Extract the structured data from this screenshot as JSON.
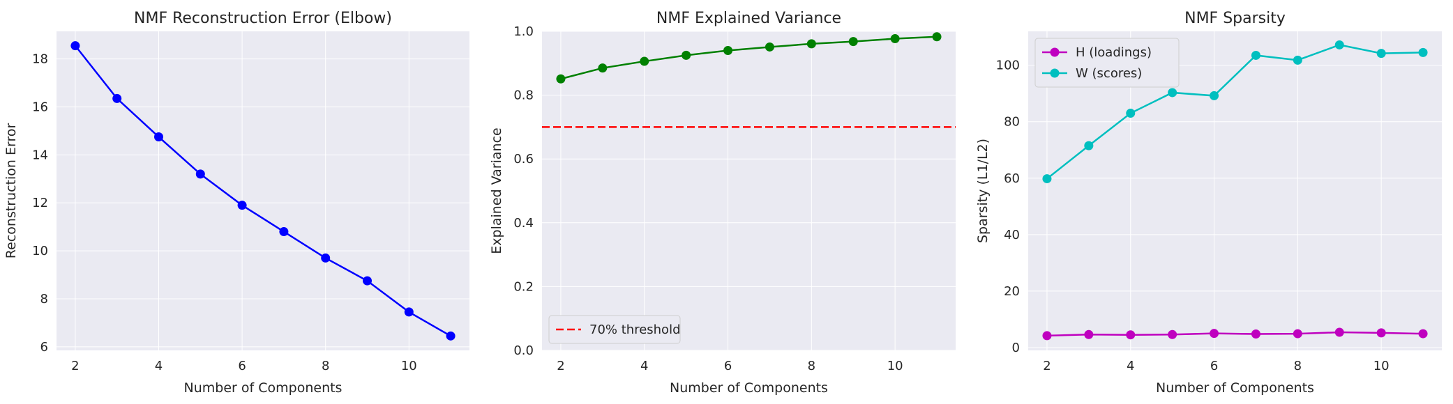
{
  "colors": {
    "panel_bg": "#eaeaf2",
    "grid": "#ffffff",
    "text": "#262626",
    "error_line": "#0000ff",
    "variance_line": "#008000",
    "threshold": "#ff0000",
    "h_line": "#bf00bf",
    "w_line": "#00bfbf"
  },
  "chart_data": [
    {
      "type": "line",
      "title": "NMF Reconstruction Error (Elbow)",
      "xlabel": "Number of Components",
      "ylabel": "Reconstruction Error",
      "x": [
        2,
        3,
        4,
        5,
        6,
        7,
        8,
        9,
        10,
        11
      ],
      "series": [
        {
          "values": [
            18.55,
            16.35,
            14.75,
            13.2,
            11.9,
            10.8,
            9.7,
            8.75,
            7.45,
            6.45
          ],
          "color": "#0000ff",
          "marker": "circle"
        }
      ],
      "xlim": [
        1.55,
        11.45
      ],
      "ylim": [
        5.85,
        19.15
      ],
      "xticks": [
        2,
        4,
        6,
        8,
        10
      ],
      "yticks": [
        6,
        8,
        10,
        12,
        14,
        16,
        18
      ],
      "grid": true
    },
    {
      "type": "line",
      "title": "NMF Explained Variance",
      "xlabel": "Number of Components",
      "ylabel": "Explained Variance",
      "x": [
        2,
        3,
        4,
        5,
        6,
        7,
        8,
        9,
        10,
        11
      ],
      "series": [
        {
          "values": [
            0.851,
            0.885,
            0.906,
            0.925,
            0.94,
            0.951,
            0.961,
            0.968,
            0.977,
            0.983
          ],
          "color": "#008000",
          "marker": "circle"
        }
      ],
      "hlines": [
        {
          "name": "70% threshold",
          "y": 0.7,
          "color": "#ff0000",
          "style": "dashed"
        }
      ],
      "xlim": [
        1.55,
        11.45
      ],
      "ylim": [
        0,
        1.0
      ],
      "xticks": [
        2,
        4,
        6,
        8,
        10
      ],
      "yticks": [
        "0.0",
        "0.2",
        "0.4",
        "0.6",
        "0.8",
        "1.0"
      ],
      "legend": {
        "placement": "lower-left",
        "entries": [
          "70% threshold"
        ]
      },
      "grid": true
    },
    {
      "type": "line",
      "title": "NMF Sparsity",
      "xlabel": "Number of Components",
      "ylabel": "Sparsity (L1/L2)",
      "x": [
        2,
        3,
        4,
        5,
        6,
        7,
        8,
        9,
        10,
        11
      ],
      "series": [
        {
          "name": "H (loadings)",
          "values": [
            4.2,
            4.6,
            4.5,
            4.6,
            5.0,
            4.8,
            4.9,
            5.4,
            5.2,
            4.9
          ],
          "color": "#bf00bf",
          "marker": "circle"
        },
        {
          "name": "W (scores)",
          "values": [
            59.8,
            71.5,
            83.0,
            90.3,
            89.2,
            103.5,
            101.8,
            107.2,
            104.2,
            104.5
          ],
          "color": "#00bfbf",
          "marker": "circle"
        }
      ],
      "xlim": [
        1.55,
        11.45
      ],
      "ylim": [
        -1,
        112
      ],
      "xticks": [
        2,
        4,
        6,
        8,
        10
      ],
      "yticks": [
        0,
        20,
        40,
        60,
        80,
        100
      ],
      "legend": {
        "placement": "upper-left",
        "entries": [
          "H (loadings)",
          "W (scores)"
        ]
      },
      "grid": true
    }
  ]
}
